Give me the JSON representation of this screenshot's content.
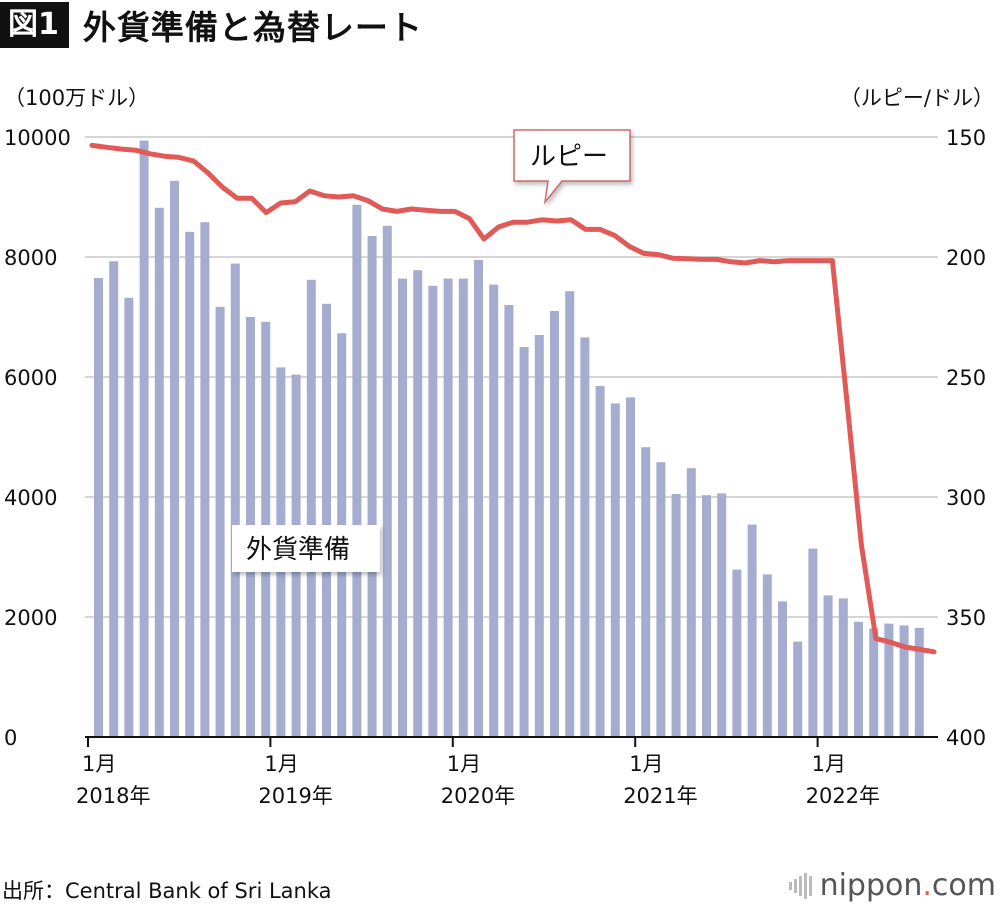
{
  "figure": {
    "badge": "図1",
    "title": "外貨準備と為替レート"
  },
  "source": "出所：Central Bank of Sri Lanka",
  "logo": {
    "text_pre": "nippon",
    "dot": ".",
    "text_post": "com"
  },
  "colors": {
    "bars": "#a4acd0",
    "line": "#e05a57",
    "grid": "#c8c8c8",
    "axis": "#111111"
  },
  "chart_data": {
    "type": "bar+line",
    "title": "外貨準備と為替レート",
    "left_unit": "（100万ドル）",
    "right_unit": "（ルピー/ドル）",
    "left_axis": {
      "min": 0,
      "max": 10000,
      "ticks": [
        0,
        2000,
        4000,
        6000,
        8000,
        10000
      ],
      "tick_labels": [
        "0",
        "2000",
        "4000",
        "6000",
        "8000",
        "10000"
      ]
    },
    "right_axis": {
      "min": 150,
      "max": 400,
      "inverted": true,
      "ticks": [
        150,
        200,
        250,
        300,
        350,
        400
      ],
      "tick_labels": [
        "150",
        "200",
        "250",
        "300",
        "350",
        "400"
      ]
    },
    "x_ticks": [
      {
        "index": 0,
        "month": "1月",
        "year": "2018年"
      },
      {
        "index": 12,
        "month": "1月",
        "year": "2019年"
      },
      {
        "index": 24,
        "month": "1月",
        "year": "2020年"
      },
      {
        "index": 36,
        "month": "1月",
        "year": "2021年"
      },
      {
        "index": 48,
        "month": "1月",
        "year": "2022年"
      }
    ],
    "series": [
      {
        "name": "外貨準備",
        "type": "bar",
        "axis": "left",
        "values": [
          7650,
          7930,
          7320,
          9940,
          8820,
          9270,
          8420,
          8580,
          7170,
          7890,
          7000,
          6920,
          6160,
          6040,
          7620,
          7220,
          6730,
          8870,
          8350,
          8520,
          7640,
          7780,
          7520,
          7640,
          7640,
          7950,
          7540,
          7200,
          6500,
          6700,
          7100,
          7430,
          6660,
          5850,
          5560,
          5660,
          4830,
          4580,
          4050,
          4480,
          4030,
          4060,
          2790,
          3540,
          2710,
          2260,
          1590,
          3140,
          2360,
          2310,
          1920,
          1810,
          1890,
          1860,
          1820
        ]
      },
      {
        "name": "ルピー",
        "type": "line",
        "axis": "right",
        "values": [
          153.5,
          154.3,
          155.0,
          155.5,
          157.0,
          158.0,
          158.5,
          160.0,
          165.0,
          171.0,
          175.5,
          175.5,
          181.5,
          177.5,
          177.0,
          172.5,
          174.5,
          175.0,
          174.5,
          176.5,
          180.0,
          181.0,
          180.0,
          180.5,
          181.0,
          181.0,
          184.0,
          192.5,
          187.5,
          185.5,
          185.5,
          184.5,
          185.0,
          184.5,
          188.5,
          188.5,
          191.0,
          195.5,
          198.5,
          199.0,
          200.5,
          200.7,
          201.0,
          201.0,
          202.0,
          202.5,
          201.5,
          202.0,
          201.5,
          201.5,
          201.5,
          201.5,
          260.0,
          320.0,
          359.0,
          360.5,
          362.5,
          363.5,
          364.5
        ]
      }
    ],
    "annotations": [
      {
        "label": "ルピー",
        "series": "ルピー"
      },
      {
        "label": "外貨準備",
        "series": "外貨準備"
      }
    ]
  }
}
